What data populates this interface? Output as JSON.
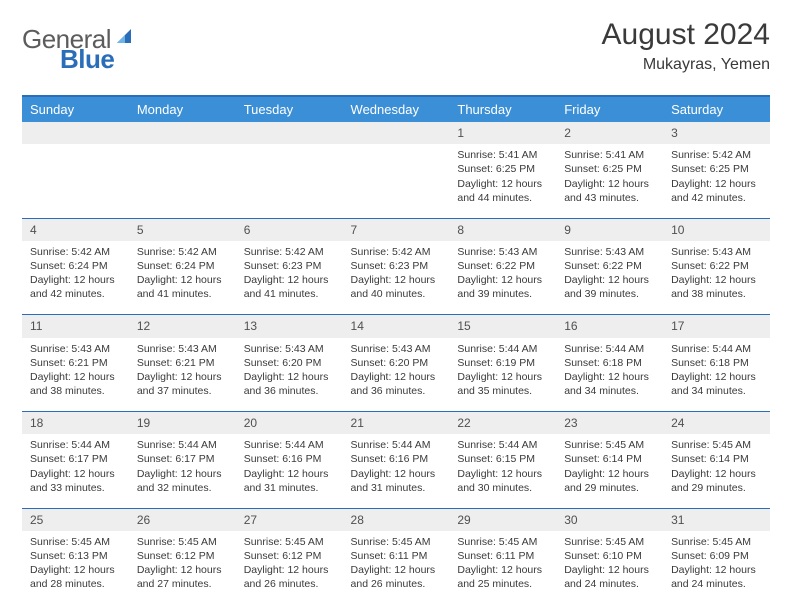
{
  "logo": {
    "text1": "General",
    "text2": "Blue"
  },
  "title": "August 2024",
  "location": "Mukayras, Yemen",
  "colors": {
    "header_bg": "#3b8fd6",
    "header_border": "#2a6db8",
    "daynum_bg": "#eeeeee",
    "text": "#3a3a3a"
  },
  "weekdays": [
    "Sunday",
    "Monday",
    "Tuesday",
    "Wednesday",
    "Thursday",
    "Friday",
    "Saturday"
  ],
  "weeks": [
    {
      "nums": [
        "",
        "",
        "",
        "",
        "1",
        "2",
        "3"
      ],
      "cells": [
        null,
        null,
        null,
        null,
        {
          "sunrise": "Sunrise: 5:41 AM",
          "sunset": "Sunset: 6:25 PM",
          "d1": "Daylight: 12 hours",
          "d2": "and 44 minutes."
        },
        {
          "sunrise": "Sunrise: 5:41 AM",
          "sunset": "Sunset: 6:25 PM",
          "d1": "Daylight: 12 hours",
          "d2": "and 43 minutes."
        },
        {
          "sunrise": "Sunrise: 5:42 AM",
          "sunset": "Sunset: 6:25 PM",
          "d1": "Daylight: 12 hours",
          "d2": "and 42 minutes."
        }
      ]
    },
    {
      "nums": [
        "4",
        "5",
        "6",
        "7",
        "8",
        "9",
        "10"
      ],
      "cells": [
        {
          "sunrise": "Sunrise: 5:42 AM",
          "sunset": "Sunset: 6:24 PM",
          "d1": "Daylight: 12 hours",
          "d2": "and 42 minutes."
        },
        {
          "sunrise": "Sunrise: 5:42 AM",
          "sunset": "Sunset: 6:24 PM",
          "d1": "Daylight: 12 hours",
          "d2": "and 41 minutes."
        },
        {
          "sunrise": "Sunrise: 5:42 AM",
          "sunset": "Sunset: 6:23 PM",
          "d1": "Daylight: 12 hours",
          "d2": "and 41 minutes."
        },
        {
          "sunrise": "Sunrise: 5:42 AM",
          "sunset": "Sunset: 6:23 PM",
          "d1": "Daylight: 12 hours",
          "d2": "and 40 minutes."
        },
        {
          "sunrise": "Sunrise: 5:43 AM",
          "sunset": "Sunset: 6:22 PM",
          "d1": "Daylight: 12 hours",
          "d2": "and 39 minutes."
        },
        {
          "sunrise": "Sunrise: 5:43 AM",
          "sunset": "Sunset: 6:22 PM",
          "d1": "Daylight: 12 hours",
          "d2": "and 39 minutes."
        },
        {
          "sunrise": "Sunrise: 5:43 AM",
          "sunset": "Sunset: 6:22 PM",
          "d1": "Daylight: 12 hours",
          "d2": "and 38 minutes."
        }
      ]
    },
    {
      "nums": [
        "11",
        "12",
        "13",
        "14",
        "15",
        "16",
        "17"
      ],
      "cells": [
        {
          "sunrise": "Sunrise: 5:43 AM",
          "sunset": "Sunset: 6:21 PM",
          "d1": "Daylight: 12 hours",
          "d2": "and 38 minutes."
        },
        {
          "sunrise": "Sunrise: 5:43 AM",
          "sunset": "Sunset: 6:21 PM",
          "d1": "Daylight: 12 hours",
          "d2": "and 37 minutes."
        },
        {
          "sunrise": "Sunrise: 5:43 AM",
          "sunset": "Sunset: 6:20 PM",
          "d1": "Daylight: 12 hours",
          "d2": "and 36 minutes."
        },
        {
          "sunrise": "Sunrise: 5:43 AM",
          "sunset": "Sunset: 6:20 PM",
          "d1": "Daylight: 12 hours",
          "d2": "and 36 minutes."
        },
        {
          "sunrise": "Sunrise: 5:44 AM",
          "sunset": "Sunset: 6:19 PM",
          "d1": "Daylight: 12 hours",
          "d2": "and 35 minutes."
        },
        {
          "sunrise": "Sunrise: 5:44 AM",
          "sunset": "Sunset: 6:18 PM",
          "d1": "Daylight: 12 hours",
          "d2": "and 34 minutes."
        },
        {
          "sunrise": "Sunrise: 5:44 AM",
          "sunset": "Sunset: 6:18 PM",
          "d1": "Daylight: 12 hours",
          "d2": "and 34 minutes."
        }
      ]
    },
    {
      "nums": [
        "18",
        "19",
        "20",
        "21",
        "22",
        "23",
        "24"
      ],
      "cells": [
        {
          "sunrise": "Sunrise: 5:44 AM",
          "sunset": "Sunset: 6:17 PM",
          "d1": "Daylight: 12 hours",
          "d2": "and 33 minutes."
        },
        {
          "sunrise": "Sunrise: 5:44 AM",
          "sunset": "Sunset: 6:17 PM",
          "d1": "Daylight: 12 hours",
          "d2": "and 32 minutes."
        },
        {
          "sunrise": "Sunrise: 5:44 AM",
          "sunset": "Sunset: 6:16 PM",
          "d1": "Daylight: 12 hours",
          "d2": "and 31 minutes."
        },
        {
          "sunrise": "Sunrise: 5:44 AM",
          "sunset": "Sunset: 6:16 PM",
          "d1": "Daylight: 12 hours",
          "d2": "and 31 minutes."
        },
        {
          "sunrise": "Sunrise: 5:44 AM",
          "sunset": "Sunset: 6:15 PM",
          "d1": "Daylight: 12 hours",
          "d2": "and 30 minutes."
        },
        {
          "sunrise": "Sunrise: 5:45 AM",
          "sunset": "Sunset: 6:14 PM",
          "d1": "Daylight: 12 hours",
          "d2": "and 29 minutes."
        },
        {
          "sunrise": "Sunrise: 5:45 AM",
          "sunset": "Sunset: 6:14 PM",
          "d1": "Daylight: 12 hours",
          "d2": "and 29 minutes."
        }
      ]
    },
    {
      "nums": [
        "25",
        "26",
        "27",
        "28",
        "29",
        "30",
        "31"
      ],
      "cells": [
        {
          "sunrise": "Sunrise: 5:45 AM",
          "sunset": "Sunset: 6:13 PM",
          "d1": "Daylight: 12 hours",
          "d2": "and 28 minutes."
        },
        {
          "sunrise": "Sunrise: 5:45 AM",
          "sunset": "Sunset: 6:12 PM",
          "d1": "Daylight: 12 hours",
          "d2": "and 27 minutes."
        },
        {
          "sunrise": "Sunrise: 5:45 AM",
          "sunset": "Sunset: 6:12 PM",
          "d1": "Daylight: 12 hours",
          "d2": "and 26 minutes."
        },
        {
          "sunrise": "Sunrise: 5:45 AM",
          "sunset": "Sunset: 6:11 PM",
          "d1": "Daylight: 12 hours",
          "d2": "and 26 minutes."
        },
        {
          "sunrise": "Sunrise: 5:45 AM",
          "sunset": "Sunset: 6:11 PM",
          "d1": "Daylight: 12 hours",
          "d2": "and 25 minutes."
        },
        {
          "sunrise": "Sunrise: 5:45 AM",
          "sunset": "Sunset: 6:10 PM",
          "d1": "Daylight: 12 hours",
          "d2": "and 24 minutes."
        },
        {
          "sunrise": "Sunrise: 5:45 AM",
          "sunset": "Sunset: 6:09 PM",
          "d1": "Daylight: 12 hours",
          "d2": "and 24 minutes."
        }
      ]
    }
  ]
}
